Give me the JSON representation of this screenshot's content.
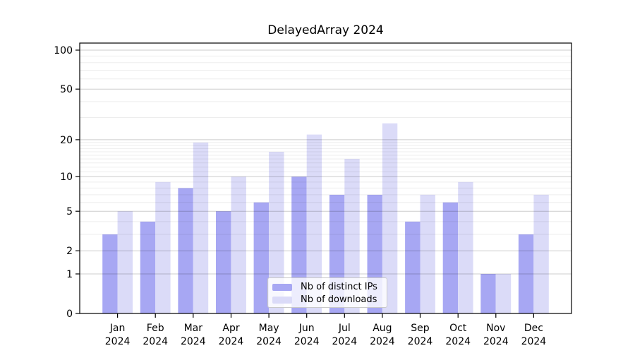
{
  "title": "DelayedArray 2024",
  "colors": {
    "background": "#ffffff",
    "bar_distinct_ips": "#a7a7f3",
    "bar_downloads": "#dbdbf8",
    "grid_major": "rgba(0,0,0,0.20)",
    "grid_minor": "rgba(0,0,0,0.07)",
    "axis": "#000000",
    "legend_border": "#c9c9c9"
  },
  "chart_data": {
    "type": "bar",
    "title": "DelayedArray 2024",
    "year": "2024",
    "months": [
      "Jan",
      "Feb",
      "Mar",
      "Apr",
      "May",
      "Jun",
      "Jul",
      "Aug",
      "Sep",
      "Oct",
      "Nov",
      "Dec"
    ],
    "categories": [
      "Jan 2024",
      "Feb 2024",
      "Mar 2024",
      "Apr 2024",
      "May 2024",
      "Jun 2024",
      "Jul 2024",
      "Aug 2024",
      "Sep 2024",
      "Oct 2024",
      "Nov 2024",
      "Dec 2024"
    ],
    "series": [
      {
        "name": "Nb of distinct IPs",
        "color": "#a7a7f3",
        "values": [
          3,
          4,
          8,
          5,
          6,
          10,
          7,
          7,
          4,
          6,
          1,
          3
        ]
      },
      {
        "name": "Nb of downloads",
        "color": "#dbdbf8",
        "values": [
          5,
          9,
          19,
          10,
          16,
          22,
          14,
          27,
          7,
          9,
          1,
          7
        ]
      }
    ],
    "xlabel": "",
    "ylabel": "",
    "y_scale": "log1p",
    "y_ticks": [
      0,
      1,
      2,
      5,
      10,
      20,
      50,
      100
    ],
    "y_minor_ticks": [
      3,
      4,
      6,
      7,
      8,
      9,
      11,
      12,
      13,
      14,
      15,
      16,
      17,
      18,
      19,
      30,
      40,
      60,
      70,
      80,
      90
    ],
    "ylim": [
      0,
      112
    ],
    "grid": true,
    "legend_position": "lower center"
  }
}
